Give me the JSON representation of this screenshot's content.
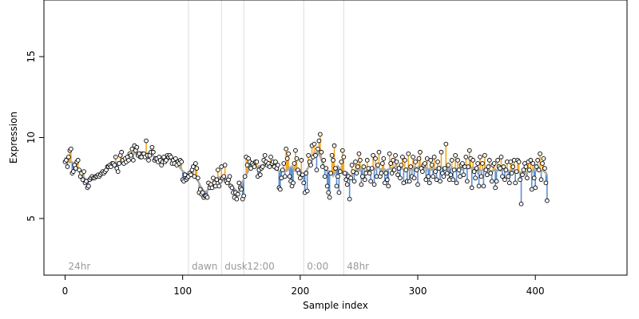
{
  "chart_data": {
    "type": "scatter",
    "title": "",
    "xlabel": "Sample index",
    "ylabel": "Expression",
    "xlim": [
      -18,
      478
    ],
    "ylim": [
      1.5,
      18.5
    ],
    "xticks": [
      0,
      100,
      200,
      300,
      400
    ],
    "yticks": [
      5,
      10,
      15
    ],
    "grid": false,
    "colors": {
      "points_fill": "#ffffff",
      "points_edge": "#000000",
      "smooth_line": "#aaaaaa",
      "above_segment": "#f5a623",
      "below_segment": "#5b8fd6",
      "boundary_line": "#dddddd",
      "segment_label": "#9a9a9a"
    },
    "segments": [
      {
        "label": "24hr",
        "x": 0
      },
      {
        "label": "dawn",
        "x": 105
      },
      {
        "label": "dusk",
        "x": 133
      },
      {
        "label": "12:00",
        "x": 152
      },
      {
        "label": "0:00",
        "x": 203
      },
      {
        "label": "48hr",
        "x": 237
      }
    ],
    "boundaries": [
      105,
      133,
      152,
      203,
      237
    ],
    "series": [
      {
        "values": [
          8.5,
          8.6,
          8.2,
          8.8,
          9.2,
          9.3,
          7.8,
          7.9,
          8.3,
          8.1,
          8.5,
          8.6,
          8.0,
          7.6,
          7.8,
          7.4,
          7.9,
          7.2,
          7.3,
          6.9,
          7.0,
          7.4,
          7.5,
          7.6,
          7.5,
          7.5,
          7.6,
          7.6,
          7.7,
          7.6,
          7.7,
          7.8,
          7.9,
          7.8,
          7.9,
          8.0,
          8.2,
          8.2,
          8.3,
          8.2,
          8.4,
          8.4,
          8.3,
          8.8,
          8.1,
          7.9,
          8.4,
          8.9,
          9.1,
          8.6,
          8.4,
          8.7,
          8.5,
          8.8,
          8.6,
          9.0,
          8.9,
          9.3,
          8.6,
          9.5,
          9.2,
          9.4,
          8.9,
          9.0,
          8.8,
          8.8,
          9.0,
          9.0,
          8.8,
          9.8,
          8.9,
          8.6,
          8.9,
          9.1,
          9.4,
          9.1,
          8.6,
          8.7,
          8.7,
          8.5,
          8.8,
          8.6,
          8.3,
          8.5,
          8.8,
          8.5,
          8.6,
          8.9,
          8.8,
          8.9,
          8.8,
          8.4,
          8.6,
          8.4,
          8.7,
          8.3,
          8.5,
          8.4,
          8.6,
          8.5,
          7.4,
          7.3,
          7.7,
          7.4,
          7.5,
          7.6,
          7.8,
          7.7,
          8.0,
          8.2,
          7.6,
          8.4,
          8.1,
          7.5,
          6.6,
          6.8,
          6.5,
          6.6,
          6.3,
          6.4,
          6.4,
          6.3,
          7.2,
          6.9,
          7.1,
          6.9,
          7.5,
          7.2,
          7.0,
          7.4,
          8.0,
          7.0,
          7.3,
          8.2,
          7.5,
          7.6,
          8.3,
          7.3,
          7.2,
          7.4,
          7.6,
          7.0,
          6.9,
          6.6,
          6.3,
          6.6,
          6.2,
          6.5,
          7.2,
          6.9,
          6.8,
          6.2,
          6.4,
          7.6,
          8.8,
          8.3,
          8.7,
          8.5,
          8.1,
          8.4,
          8.3,
          8.2,
          8.5,
          8.5,
          7.6,
          8.0,
          7.7,
          8.1,
          8.2,
          8.6,
          8.9,
          8.5,
          8.3,
          8.4,
          8.2,
          8.8,
          8.4,
          8.5,
          8.2,
          8.5,
          8.1,
          8.3,
          6.9,
          6.8,
          7.5,
          8.0,
          8.4,
          7.6,
          9.3,
          8.7,
          9.0,
          7.6,
          7.3,
          7.0,
          7.2,
          8.4,
          9.2,
          8.7,
          8.0,
          7.8,
          7.5,
          8.6,
          7.7,
          7.2,
          6.6,
          7.8,
          6.7,
          8.9,
          8.5,
          8.3,
          9.5,
          8.8,
          9.6,
          8.9,
          8.0,
          9.3,
          9.8,
          10.2,
          9.1,
          8.2,
          8.6,
          7.6,
          8.1,
          7.0,
          6.6,
          6.3,
          7.8,
          8.9,
          8.6,
          9.5,
          8.1,
          7.0,
          7.6,
          6.6,
          7.9,
          8.5,
          9.2,
          8.8,
          7.8,
          7.4,
          7.1,
          7.6,
          6.2,
          7.5,
          8.3,
          7.9,
          7.3,
          8.5,
          7.8,
          8.2,
          9.0,
          8.6,
          7.1,
          7.6,
          8.2,
          7.4,
          7.8,
          8.6,
          8.1,
          7.8,
          7.3,
          8.1,
          8.9,
          7.1,
          8.7,
          7.6,
          8.3,
          9.1,
          7.6,
          7.8,
          8.4,
          8.7,
          7.2,
          7.8,
          7.4,
          7.0,
          9.0,
          8.4,
          7.8,
          8.6,
          8.0,
          8.9,
          8.5,
          7.7,
          8.1,
          7.5,
          8.3,
          8.8,
          7.2,
          8.6,
          8.0,
          7.3,
          9.0,
          7.3,
          8.2,
          7.6,
          8.8,
          7.5,
          8.5,
          8.0,
          7.1,
          8.7,
          9.1,
          8.1,
          7.9,
          8.3,
          8.4,
          7.4,
          8.7,
          7.6,
          7.2,
          8.6,
          8.3,
          7.6,
          8.8,
          7.9,
          7.4,
          8.5,
          8.1,
          7.3,
          9.1,
          7.8,
          7.6,
          8.1,
          9.6,
          7.8,
          8.3,
          7.4,
          7.7,
          8.6,
          7.4,
          8.0,
          8.9,
          7.2,
          8.6,
          8.0,
          7.6,
          8.3,
          8.4,
          7.7,
          8.2,
          8.8,
          7.3,
          8.2,
          9.2,
          8.7,
          6.9,
          8.6,
          7.9,
          7.5,
          8.1,
          8.4,
          7.0,
          8.8,
          7.6,
          8.4,
          7.0,
          8.9,
          8.0,
          7.7,
          8.2,
          8.6,
          7.8,
          7.3,
          8.3,
          8.4,
          6.9,
          7.3,
          8.6,
          8.2,
          8.1,
          8.8,
          7.6,
          8.2,
          7.4,
          8.0,
          8.5,
          7.6,
          7.2,
          8.5,
          7.8,
          8.2,
          8.6,
          7.2,
          7.9,
          8.6,
          8.5,
          7.4,
          5.9,
          7.7,
          8.0,
          8.4,
          8.2,
          7.5,
          8.5,
          8.0,
          8.6,
          6.8,
          8.4,
          7.5,
          6.9,
          8.2,
          8.6,
          8.0,
          9.0,
          7.4,
          8.4,
          8.7,
          8.1,
          7.2,
          6.1
        ]
      }
    ]
  }
}
